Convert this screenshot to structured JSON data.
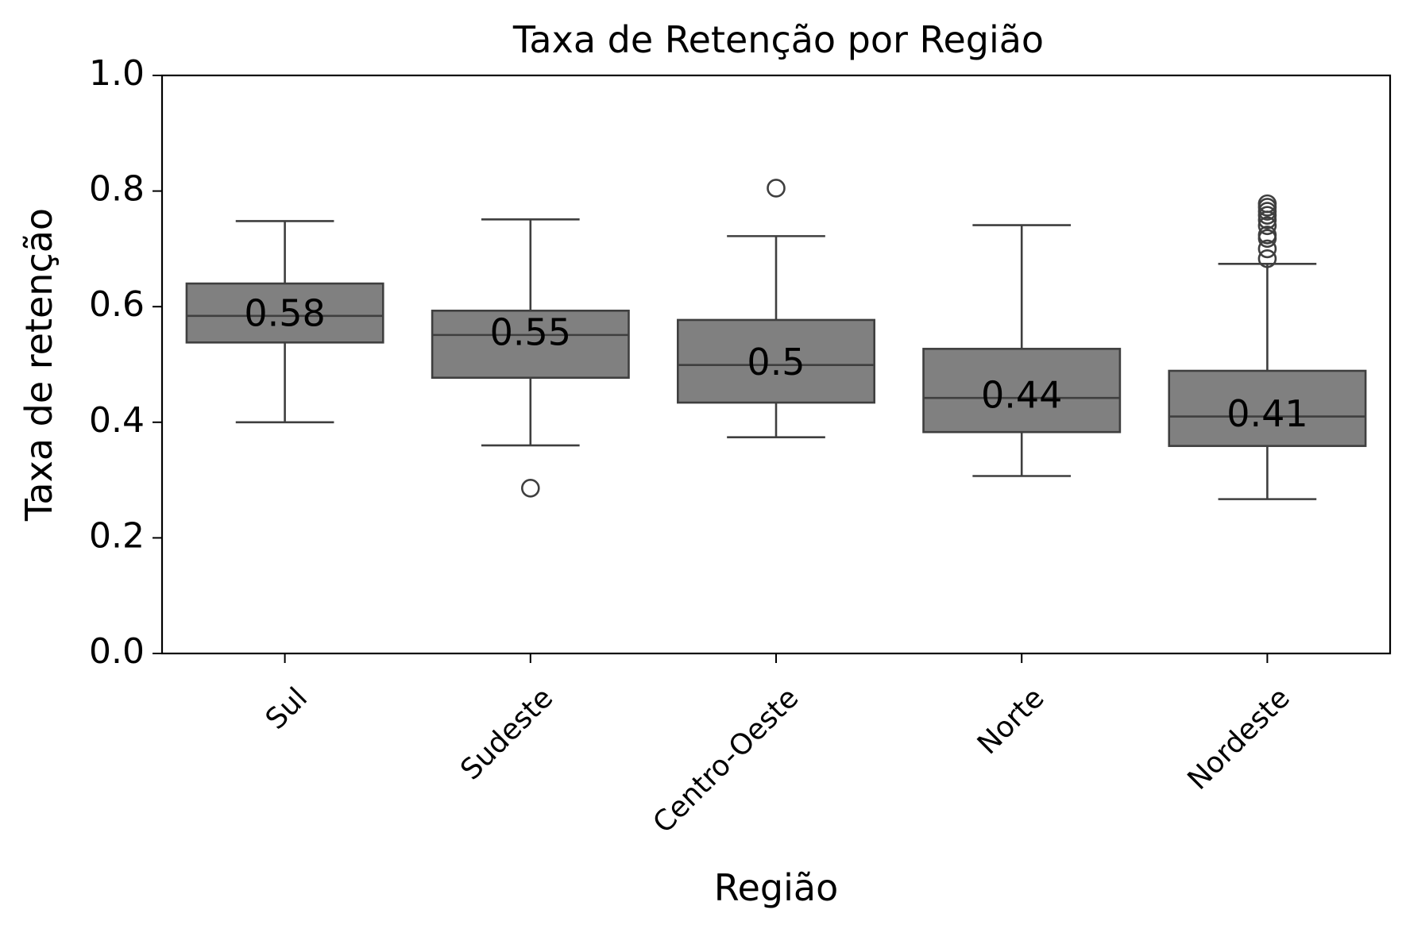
{
  "chart_data": {
    "type": "box",
    "title": "Taxa de Retenção por Região",
    "xlabel": "Região",
    "ylabel": "Taxa de retenção",
    "ylim": [
      0,
      1
    ],
    "yticks": [
      "0.0",
      "0.2",
      "0.4",
      "0.6",
      "0.8",
      "1.0"
    ],
    "grid": false,
    "box_color": "#808080",
    "line_color": "#3f3f3f",
    "categories": [
      "Sul",
      "Sudeste",
      "Centro-Oeste",
      "Norte",
      "Nordeste"
    ],
    "boxes": [
      {
        "category": "Sul",
        "whisker_low": 0.4,
        "q1": 0.538,
        "median": 0.584,
        "q3": 0.64,
        "whisker_high": 0.748,
        "outliers": [],
        "label": "0.58"
      },
      {
        "category": "Sudeste",
        "whisker_low": 0.36,
        "q1": 0.477,
        "median": 0.551,
        "q3": 0.593,
        "whisker_high": 0.751,
        "outliers": [
          0.286
        ],
        "label": "0.55"
      },
      {
        "category": "Centro-Oeste",
        "whisker_low": 0.374,
        "q1": 0.434,
        "median": 0.499,
        "q3": 0.577,
        "whisker_high": 0.722,
        "outliers": [
          0.805
        ],
        "label": "0.5"
      },
      {
        "category": "Norte",
        "whisker_low": 0.307,
        "q1": 0.383,
        "median": 0.442,
        "q3": 0.527,
        "whisker_high": 0.741,
        "outliers": [],
        "label": "0.44"
      },
      {
        "category": "Nordeste",
        "whisker_low": 0.267,
        "q1": 0.359,
        "median": 0.41,
        "q3": 0.489,
        "whisker_high": 0.674,
        "outliers": [
          0.683,
          0.7,
          0.718,
          0.724,
          0.74,
          0.75,
          0.758,
          0.765,
          0.772,
          0.778
        ],
        "label": "0.41"
      }
    ]
  }
}
